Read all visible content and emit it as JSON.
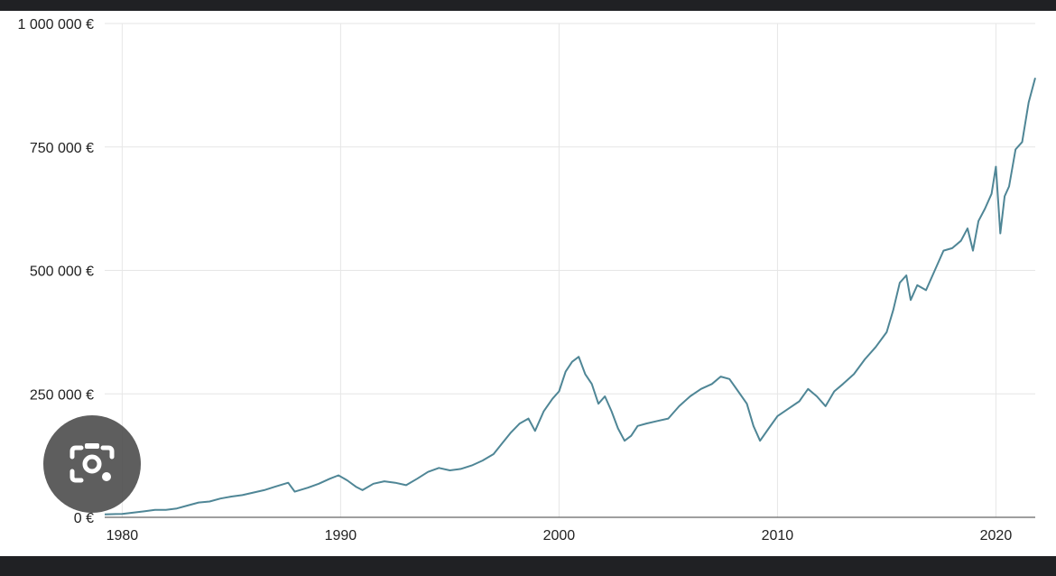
{
  "chart_data": {
    "type": "line",
    "title": "",
    "xlabel": "",
    "ylabel": "",
    "xlim": [
      1979.2,
      2021.8
    ],
    "ylim": [
      0,
      1000000
    ],
    "y_ticks": [
      0,
      250000,
      500000,
      750000,
      1000000
    ],
    "y_tick_labels": [
      "0 €",
      "250 000 €",
      "500 000 €",
      "750 000 €",
      "1 000 000 €"
    ],
    "x_ticks": [
      1980,
      1990,
      2000,
      2010,
      2020
    ],
    "x_tick_labels": [
      "1980",
      "1990",
      "2000",
      "2010",
      "2020"
    ],
    "grid": true,
    "legend": "none",
    "line_color": "#4f8696",
    "series": [
      {
        "name": "",
        "x": [
          1979.2,
          1980.0,
          1981.0,
          1981.5,
          1982.0,
          1982.5,
          1983.0,
          1983.5,
          1984.0,
          1984.5,
          1985.0,
          1985.5,
          1986.0,
          1986.5,
          1987.0,
          1987.6,
          1987.9,
          1988.5,
          1989.0,
          1989.5,
          1989.9,
          1990.3,
          1990.7,
          1991.0,
          1991.5,
          1992.0,
          1992.5,
          1993.0,
          1993.5,
          1994.0,
          1994.5,
          1995.0,
          1995.5,
          1996.0,
          1996.5,
          1997.0,
          1997.4,
          1997.8,
          1998.2,
          1998.6,
          1998.9,
          1999.3,
          1999.7,
          2000.0,
          2000.3,
          2000.6,
          2000.9,
          2001.2,
          2001.5,
          2001.8,
          2002.1,
          2002.4,
          2002.7,
          2003.0,
          2003.3,
          2003.6,
          2004.0,
          2004.5,
          2005.0,
          2005.5,
          2006.0,
          2006.5,
          2007.0,
          2007.4,
          2007.8,
          2008.2,
          2008.6,
          2008.9,
          2009.2,
          2009.6,
          2010.0,
          2010.5,
          2011.0,
          2011.4,
          2011.8,
          2012.2,
          2012.6,
          2013.0,
          2013.5,
          2014.0,
          2014.5,
          2015.0,
          2015.3,
          2015.6,
          2015.9,
          2016.1,
          2016.4,
          2016.8,
          2017.2,
          2017.6,
          2018.0,
          2018.4,
          2018.7,
          2018.95,
          2019.2,
          2019.5,
          2019.8,
          2020.0,
          2020.2,
          2020.4,
          2020.6,
          2020.9,
          2021.2,
          2021.5,
          2021.8
        ],
        "y": [
          6000,
          7000,
          12000,
          15000,
          15000,
          18000,
          24000,
          30000,
          32000,
          38000,
          42000,
          45000,
          50000,
          55000,
          62000,
          70000,
          52000,
          60000,
          68000,
          78000,
          85000,
          75000,
          62000,
          55000,
          68000,
          73000,
          70000,
          65000,
          78000,
          92000,
          100000,
          95000,
          98000,
          105000,
          115000,
          128000,
          150000,
          172000,
          190000,
          200000,
          175000,
          215000,
          240000,
          255000,
          295000,
          315000,
          325000,
          290000,
          270000,
          230000,
          245000,
          215000,
          180000,
          155000,
          165000,
          185000,
          190000,
          195000,
          200000,
          225000,
          245000,
          260000,
          270000,
          285000,
          280000,
          255000,
          230000,
          185000,
          155000,
          180000,
          205000,
          220000,
          235000,
          260000,
          245000,
          225000,
          255000,
          270000,
          290000,
          320000,
          345000,
          375000,
          420000,
          475000,
          490000,
          440000,
          470000,
          460000,
          500000,
          540000,
          545000,
          560000,
          585000,
          540000,
          600000,
          625000,
          655000,
          710000,
          575000,
          650000,
          670000,
          745000,
          760000,
          840000,
          890000
        ]
      }
    ]
  },
  "overlay": {
    "lens_icon": "camera-lens-icon"
  }
}
